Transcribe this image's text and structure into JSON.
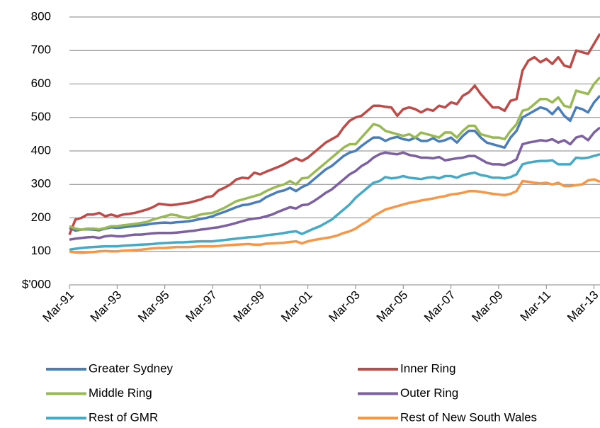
{
  "chart_data": {
    "type": "line",
    "categories": [
      "Mar-91",
      null,
      null,
      null,
      null,
      null,
      null,
      null,
      "Mar-93",
      null,
      null,
      null,
      null,
      null,
      null,
      null,
      "Mar-95",
      null,
      null,
      null,
      null,
      null,
      null,
      null,
      "Mar-97",
      null,
      null,
      null,
      null,
      null,
      null,
      null,
      "Mar-99",
      null,
      null,
      null,
      null,
      null,
      null,
      null,
      "Mar-01",
      null,
      null,
      null,
      null,
      null,
      null,
      null,
      "Mar-03",
      null,
      null,
      null,
      null,
      null,
      null,
      null,
      "Mar-05",
      null,
      null,
      null,
      null,
      null,
      null,
      null,
      "Mar-07",
      null,
      null,
      null,
      null,
      null,
      null,
      null,
      "Mar-09",
      null,
      null,
      null,
      null,
      null,
      null,
      null,
      "Mar-11",
      null,
      null,
      null,
      null,
      null,
      null,
      null,
      "Mar-13",
      null
    ],
    "ylim": [
      0,
      800
    ],
    "yticks": [
      {
        "value": 0,
        "label": "$'000"
      },
      100,
      200,
      300,
      400,
      500,
      600,
      700,
      800
    ],
    "grid": true,
    "series": [
      {
        "name": "Greater Sydney",
        "color": "#4a7ebb",
        "values": [
          170,
          162,
          165,
          166,
          165,
          163,
          168,
          172,
          170,
          172,
          174,
          176,
          178,
          180,
          183,
          185,
          186,
          185,
          187,
          188,
          190,
          193,
          197,
          200,
          205,
          212,
          218,
          225,
          232,
          238,
          240,
          245,
          250,
          262,
          270,
          278,
          282,
          290,
          280,
          292,
          300,
          315,
          330,
          345,
          355,
          370,
          385,
          395,
          400,
          415,
          428,
          440,
          440,
          430,
          438,
          442,
          435,
          432,
          440,
          430,
          430,
          438,
          428,
          432,
          440,
          425,
          445,
          460,
          460,
          440,
          425,
          420,
          415,
          410,
          440,
          460,
          500,
          510,
          520,
          530,
          525,
          510,
          530,
          505,
          490,
          530,
          525,
          515,
          545,
          565
        ]
      },
      {
        "name": "Inner Ring",
        "color": "#be4b48",
        "values": [
          150,
          195,
          200,
          210,
          210,
          215,
          205,
          210,
          205,
          210,
          212,
          215,
          220,
          225,
          232,
          242,
          240,
          238,
          240,
          243,
          245,
          250,
          255,
          262,
          265,
          282,
          290,
          300,
          315,
          320,
          318,
          335,
          330,
          338,
          345,
          352,
          360,
          370,
          378,
          370,
          380,
          395,
          410,
          425,
          435,
          445,
          470,
          490,
          500,
          505,
          520,
          535,
          535,
          532,
          530,
          505,
          525,
          530,
          525,
          515,
          525,
          520,
          535,
          530,
          545,
          540,
          565,
          575,
          595,
          570,
          550,
          530,
          530,
          520,
          550,
          555,
          640,
          670,
          680,
          665,
          675,
          660,
          680,
          655,
          650,
          700,
          695,
          690,
          720,
          750
        ]
      },
      {
        "name": "Middle Ring",
        "color": "#98b954",
        "values": [
          175,
          168,
          165,
          168,
          168,
          166,
          170,
          175,
          175,
          178,
          180,
          182,
          185,
          188,
          195,
          200,
          205,
          210,
          208,
          202,
          200,
          205,
          210,
          213,
          215,
          222,
          230,
          240,
          250,
          255,
          260,
          265,
          270,
          280,
          288,
          295,
          300,
          310,
          300,
          318,
          320,
          335,
          350,
          365,
          380,
          395,
          410,
          420,
          420,
          440,
          460,
          480,
          475,
          460,
          455,
          450,
          445,
          450,
          440,
          455,
          450,
          445,
          440,
          455,
          455,
          440,
          460,
          475,
          475,
          450,
          445,
          440,
          440,
          435,
          460,
          480,
          520,
          525,
          540,
          555,
          555,
          545,
          560,
          535,
          530,
          580,
          575,
          570,
          600,
          620
        ]
      },
      {
        "name": "Outer Ring",
        "color": "#7d60a0",
        "values": [
          135,
          138,
          140,
          142,
          143,
          140,
          145,
          147,
          145,
          145,
          148,
          150,
          150,
          152,
          154,
          155,
          155,
          155,
          156,
          158,
          160,
          162,
          165,
          167,
          170,
          172,
          176,
          180,
          185,
          190,
          195,
          198,
          200,
          205,
          210,
          218,
          225,
          232,
          228,
          238,
          240,
          250,
          262,
          275,
          285,
          300,
          315,
          330,
          340,
          355,
          365,
          380,
          390,
          395,
          392,
          390,
          395,
          388,
          385,
          380,
          380,
          378,
          382,
          372,
          375,
          378,
          380,
          385,
          385,
          375,
          365,
          360,
          360,
          358,
          365,
          375,
          420,
          425,
          428,
          432,
          430,
          435,
          425,
          432,
          420,
          440,
          445,
          432,
          455,
          470
        ]
      },
      {
        "name": "Rest of GMR",
        "color": "#46aac5",
        "values": [
          105,
          108,
          110,
          112,
          113,
          114,
          115,
          115,
          115,
          117,
          118,
          119,
          120,
          121,
          122,
          124,
          125,
          126,
          127,
          127,
          128,
          129,
          130,
          130,
          130,
          132,
          134,
          136,
          138,
          140,
          142,
          143,
          145,
          148,
          150,
          152,
          155,
          158,
          160,
          152,
          160,
          168,
          175,
          185,
          195,
          210,
          225,
          240,
          260,
          275,
          290,
          305,
          310,
          322,
          318,
          320,
          325,
          320,
          318,
          316,
          320,
          322,
          318,
          325,
          325,
          320,
          328,
          332,
          335,
          328,
          325,
          320,
          320,
          318,
          322,
          330,
          360,
          365,
          368,
          370,
          370,
          372,
          360,
          360,
          360,
          380,
          378,
          380,
          385,
          390
        ]
      },
      {
        "name": "Rest of New South Wales",
        "color": "#f79646",
        "values": [
          100,
          97,
          96,
          97,
          98,
          100,
          101,
          100,
          100,
          102,
          103,
          104,
          105,
          107,
          109,
          110,
          110,
          112,
          113,
          113,
          113,
          114,
          115,
          115,
          115,
          116,
          118,
          119,
          120,
          121,
          122,
          120,
          120,
          123,
          124,
          125,
          126,
          128,
          130,
          124,
          130,
          134,
          137,
          140,
          143,
          148,
          155,
          160,
          168,
          180,
          190,
          205,
          215,
          225,
          230,
          235,
          240,
          245,
          248,
          252,
          255,
          258,
          262,
          265,
          270,
          272,
          275,
          280,
          280,
          278,
          275,
          272,
          270,
          268,
          272,
          280,
          310,
          308,
          305,
          303,
          305,
          300,
          305,
          295,
          295,
          298,
          300,
          312,
          315,
          308
        ]
      }
    ]
  }
}
